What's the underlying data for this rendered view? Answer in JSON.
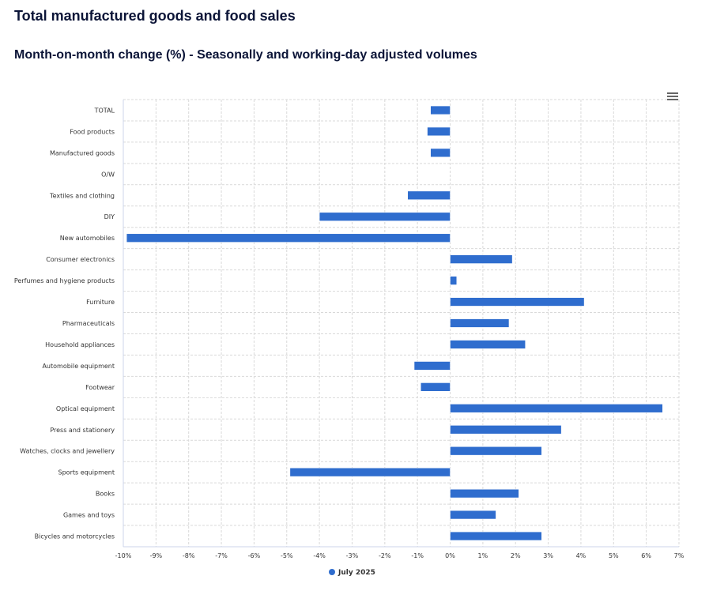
{
  "header": {
    "title": "Total manufactured goods and food sales",
    "subtitle": "Month-on-month change (%) - Seasonally and working-day adjusted volumes"
  },
  "menu": {
    "icon": "hamburger-menu-icon"
  },
  "colors": {
    "bar": "#2f6dce",
    "grid": "#d9d9d9",
    "title": "#0b1437"
  },
  "chart_data": {
    "type": "bar",
    "orientation": "horizontal",
    "title": "Month-on-month change (%) - Seasonally and working-day adjusted volumes",
    "xlabel": "",
    "ylabel": "",
    "xlim": [
      -10,
      7
    ],
    "xticks": [
      -10,
      -9,
      -8,
      -7,
      -6,
      -5,
      -4,
      -3,
      -2,
      -1,
      0,
      1,
      2,
      3,
      4,
      5,
      6,
      7
    ],
    "xtick_labels": [
      "-10%",
      "-9%",
      "-8%",
      "-7%",
      "-6%",
      "-5%",
      "-4%",
      "-3%",
      "-2%",
      "-1%",
      "0%",
      "1%",
      "2%",
      "3%",
      "4%",
      "5%",
      "6%",
      "7%"
    ],
    "grid": true,
    "legend_position": "bottom-center",
    "categories": [
      "TOTAL",
      "Food products",
      "Manufactured goods",
      "O/W",
      "Textiles and clothing",
      "DIY",
      "New automobiles",
      "Consumer electronics",
      "Perfumes and hygiene products",
      "Furniture",
      "Pharmaceuticals",
      "Household appliances",
      "Automobile equipment",
      "Footwear",
      "Optical equipment",
      "Press and stationery",
      "Watches, clocks and jewellery",
      "Sports equipment",
      "Books",
      "Games and toys",
      "Bicycles and motorcycles"
    ],
    "series": [
      {
        "name": "July 2025",
        "color": "#2f6dce",
        "values": [
          -0.6,
          -0.7,
          -0.6,
          null,
          -1.3,
          -4.0,
          -9.9,
          1.9,
          0.2,
          4.1,
          1.8,
          2.3,
          -1.1,
          -0.9,
          6.5,
          3.4,
          2.8,
          -4.9,
          2.1,
          1.4,
          2.8
        ]
      }
    ]
  }
}
